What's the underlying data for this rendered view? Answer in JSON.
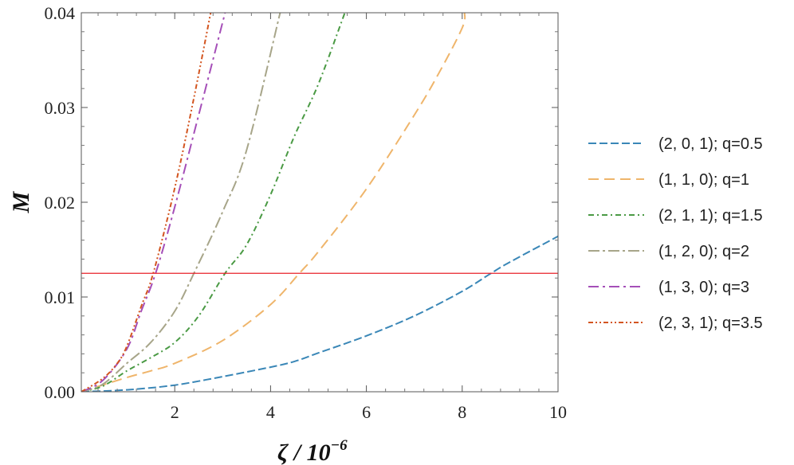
{
  "chart_data": {
    "type": "line",
    "title": "",
    "xlabel": "ζ / 10",
    "xlabel_exponent": "−6",
    "ylabel": "M",
    "xlim": [
      0.05,
      10
    ],
    "ylim": [
      0,
      0.04
    ],
    "x_ticks": [
      2,
      4,
      6,
      8,
      10
    ],
    "x_tick_labels": [
      "2",
      "4",
      "6",
      "8",
      "10"
    ],
    "y_ticks": [
      0,
      0.01,
      0.02,
      0.03,
      0.04
    ],
    "y_tick_labels": [
      "0.00",
      "0.01",
      "0.02",
      "0.03",
      "0.04"
    ],
    "legend_position": "right",
    "threshold": {
      "y": 0.0125,
      "color": "#e8202a"
    },
    "series": [
      {
        "name": "(2, 0, 1); q=0.5",
        "color": "#3a87b7",
        "dash": "10,4",
        "x": [
          0.05,
          1,
          2,
          3,
          4,
          4.5,
          5,
          6,
          7,
          8,
          8.6,
          9,
          10
        ],
        "y": [
          0,
          0.0002,
          0.0007,
          0.0016,
          0.0026,
          0.0032,
          0.0041,
          0.0059,
          0.008,
          0.0106,
          0.0125,
          0.0137,
          0.0164
        ]
      },
      {
        "name": "(1, 1, 0); q=1",
        "color": "#efb56b",
        "dash": "13,7",
        "x": [
          0.05,
          1,
          1.5,
          2,
          3,
          4,
          4.6,
          5,
          6,
          7,
          7.5,
          8,
          8.05
        ],
        "y": [
          0,
          0.0015,
          0.0022,
          0.003,
          0.0054,
          0.0092,
          0.0125,
          0.0148,
          0.0214,
          0.0292,
          0.0335,
          0.0384,
          0.04
        ]
      },
      {
        "name": "(2, 1, 1); q=1.5",
        "color": "#4a9a44",
        "dash": "7,4,2,4",
        "x": [
          0.05,
          0.5,
          1,
          1.5,
          2,
          2.5,
          3.05,
          3.5,
          4,
          4.5,
          5,
          5.55
        ],
        "y": [
          0,
          0.0006,
          0.0022,
          0.0036,
          0.0052,
          0.008,
          0.0125,
          0.0155,
          0.0208,
          0.027,
          0.0325,
          0.04
        ]
      },
      {
        "name": "(1, 2, 0); q=2",
        "color": "#a7a589",
        "dash": "14,4,3,4",
        "x": [
          0.05,
          0.5,
          1,
          1.5,
          2,
          2.4,
          3,
          3.5,
          4.2
        ],
        "y": [
          0,
          0.0008,
          0.003,
          0.0052,
          0.0085,
          0.0125,
          0.019,
          0.0255,
          0.04
        ]
      },
      {
        "name": "(1, 3, 0); q=3",
        "color": "#a54fb8",
        "dash": "13,5,3,5",
        "x": [
          0.05,
          0.5,
          1,
          1.3,
          1.6,
          2,
          2.5,
          3,
          3.05
        ],
        "y": [
          0,
          0.0012,
          0.0045,
          0.0085,
          0.0125,
          0.0195,
          0.0292,
          0.039,
          0.04
        ]
      },
      {
        "name": "(2, 3, 1); q=3.5",
        "color": "#d35520",
        "dash": "6,3,2,3,2,3",
        "x": [
          0.05,
          0.5,
          0.8,
          1,
          1.3,
          1.55,
          2,
          2.4,
          2.75
        ],
        "y": [
          0,
          0.0014,
          0.003,
          0.0048,
          0.009,
          0.0125,
          0.0215,
          0.031,
          0.04
        ]
      }
    ]
  }
}
